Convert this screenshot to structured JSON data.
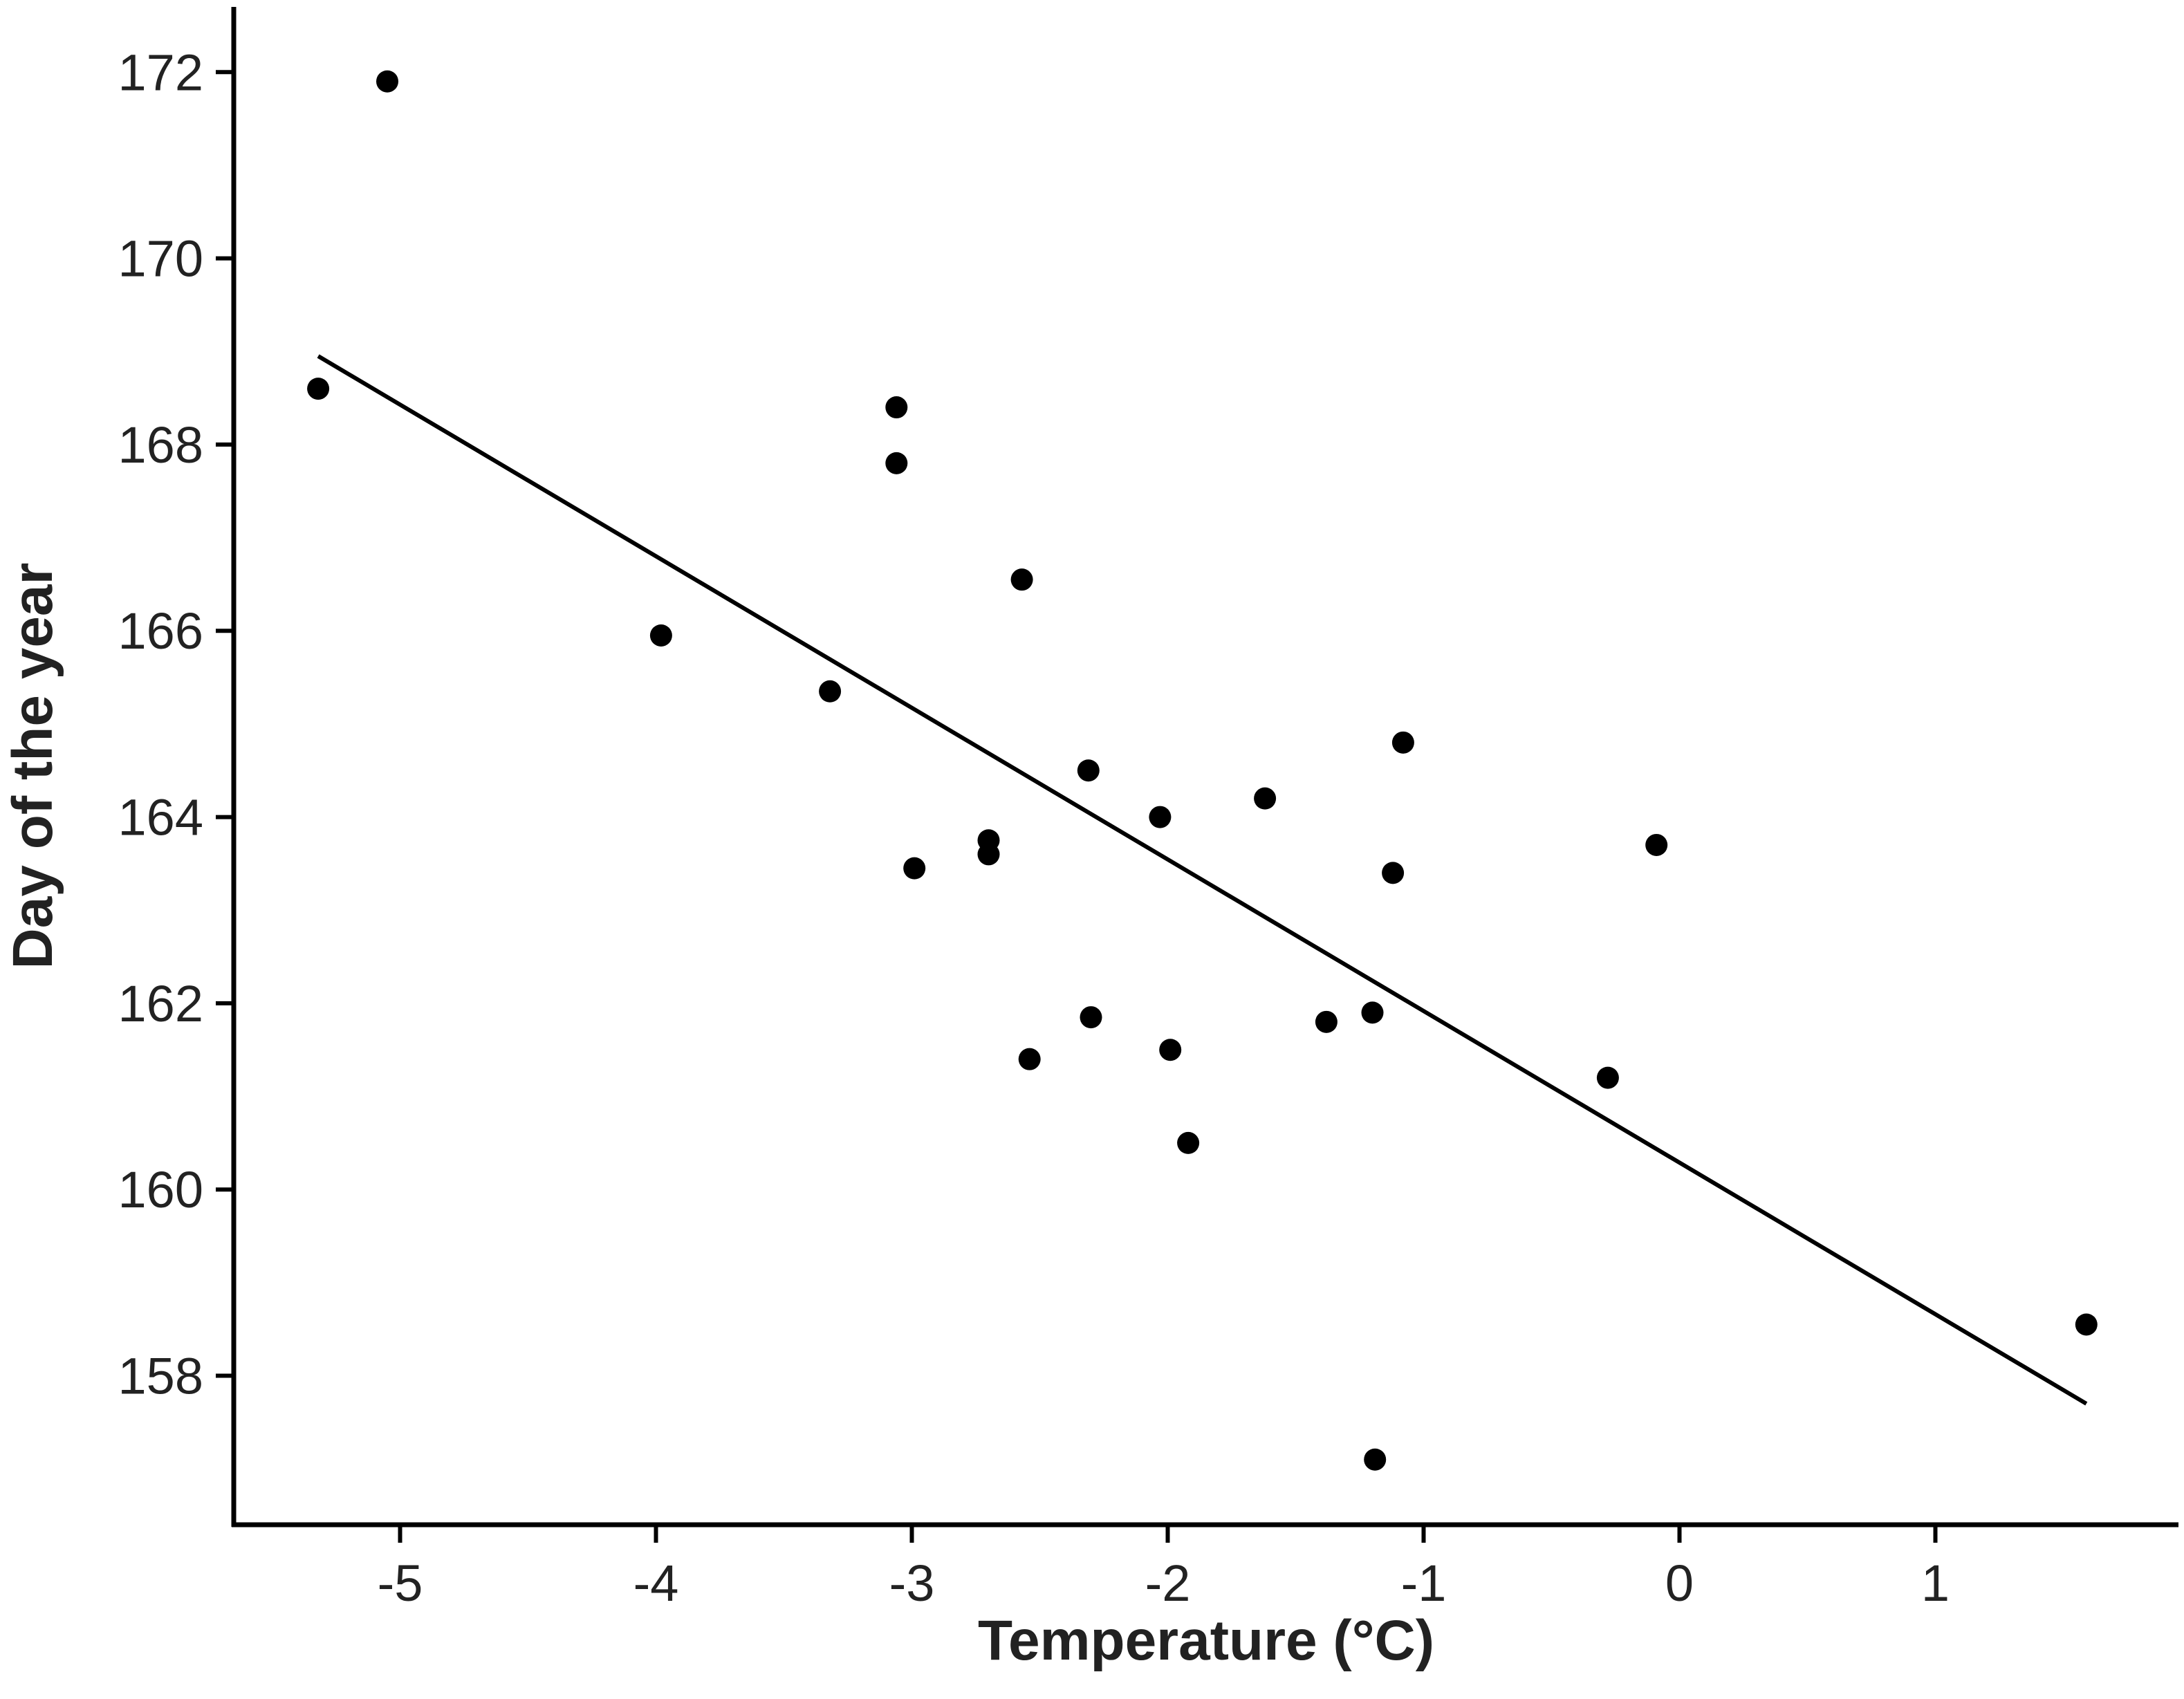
{
  "chart_data": {
    "type": "scatter",
    "title": "",
    "xlabel": "Temperature (°C)",
    "ylabel": "Day of the year",
    "xlim": [
      -5.65,
      1.95
    ],
    "ylim": [
      156.4,
      172.7
    ],
    "x_ticks": [
      -5,
      -4,
      -3,
      -2,
      -1,
      0,
      1
    ],
    "x_tick_labels": [
      "-5",
      "-4",
      "-3",
      "-2",
      "-1",
      "0",
      "1"
    ],
    "y_ticks": [
      158,
      160,
      162,
      164,
      166,
      168,
      170,
      172
    ],
    "y_tick_labels": [
      "158",
      "160",
      "162",
      "164",
      "166",
      "168",
      "170",
      "172"
    ],
    "grid": false,
    "legend": "none",
    "series": [
      {
        "points": [
          {
            "x": -5.05,
            "y": 171.9
          },
          {
            "x": -5.32,
            "y": 168.6
          },
          {
            "x": -3.98,
            "y": 165.95
          },
          {
            "x": -3.32,
            "y": 165.35
          },
          {
            "x": -3.06,
            "y": 168.4
          },
          {
            "x": -3.06,
            "y": 167.8
          },
          {
            "x": -2.99,
            "y": 163.45
          },
          {
            "x": -2.7,
            "y": 163.75
          },
          {
            "x": -2.7,
            "y": 163.6
          },
          {
            "x": -2.57,
            "y": 166.55
          },
          {
            "x": -2.54,
            "y": 161.4
          },
          {
            "x": -2.31,
            "y": 164.5
          },
          {
            "x": -2.3,
            "y": 161.85
          },
          {
            "x": -2.03,
            "y": 164.0
          },
          {
            "x": -1.99,
            "y": 161.5
          },
          {
            "x": -1.92,
            "y": 160.5
          },
          {
            "x": -1.62,
            "y": 164.2
          },
          {
            "x": -1.38,
            "y": 161.8
          },
          {
            "x": -1.2,
            "y": 161.9
          },
          {
            "x": -1.19,
            "y": 157.1
          },
          {
            "x": -1.12,
            "y": 163.4
          },
          {
            "x": -1.08,
            "y": 164.8
          },
          {
            "x": -0.28,
            "y": 161.2
          },
          {
            "x": -0.09,
            "y": 163.7
          },
          {
            "x": 1.59,
            "y": 158.55
          }
        ]
      }
    ],
    "trend_line": {
      "x": [
        -5.32,
        1.59
      ],
      "y": [
        168.95,
        157.7
      ]
    }
  }
}
